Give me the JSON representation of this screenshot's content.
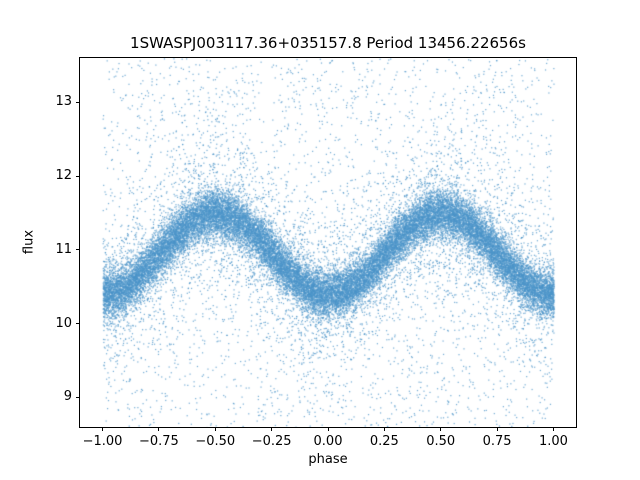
{
  "chart_data": {
    "type": "scatter",
    "title": "1SWASPJ003117.36+035157.8 Period 13456.22656s",
    "xlabel": "phase",
    "ylabel": "flux",
    "xlim": [
      -1.1,
      1.1
    ],
    "ylim": [
      8.6,
      13.6
    ],
    "xtick_values": [
      -1.0,
      -0.75,
      -0.5,
      -0.25,
      0.0,
      0.25,
      0.5,
      0.75,
      1.0
    ],
    "xtick_labels": [
      "−1.00",
      "−0.75",
      "−0.50",
      "−0.25",
      "0.00",
      "0.25",
      "0.50",
      "0.75",
      "1.00"
    ],
    "ytick_values": [
      9,
      10,
      11,
      12,
      13
    ],
    "ytick_labels": [
      "9",
      "10",
      "11",
      "12",
      "13"
    ],
    "grid": false,
    "legend": "none",
    "marker_color": "#4a94c8",
    "model": {
      "shape": "sinusoid",
      "mean_flux": 10.95,
      "amplitude": 0.55,
      "peak_phases": [
        -0.5,
        0.5
      ],
      "trough_phases": [
        -1.0,
        0.0,
        1.0
      ],
      "peak_flux": 11.5,
      "trough_flux": 10.4
    },
    "scatter": {
      "seed": 42,
      "phase_range": [
        -1.0,
        1.0
      ],
      "components": [
        {
          "name": "dense-band",
          "n": 26000,
          "sigma": 0.16,
          "alpha": 0.55,
          "size": 1.4
        },
        {
          "name": "halo",
          "n": 4500,
          "sigma": 0.55,
          "alpha": 0.8,
          "size": 1.2
        },
        {
          "name": "background-outliers",
          "n": 3000,
          "uniform": true,
          "alpha": 0.8,
          "size": 1.2
        }
      ]
    }
  }
}
